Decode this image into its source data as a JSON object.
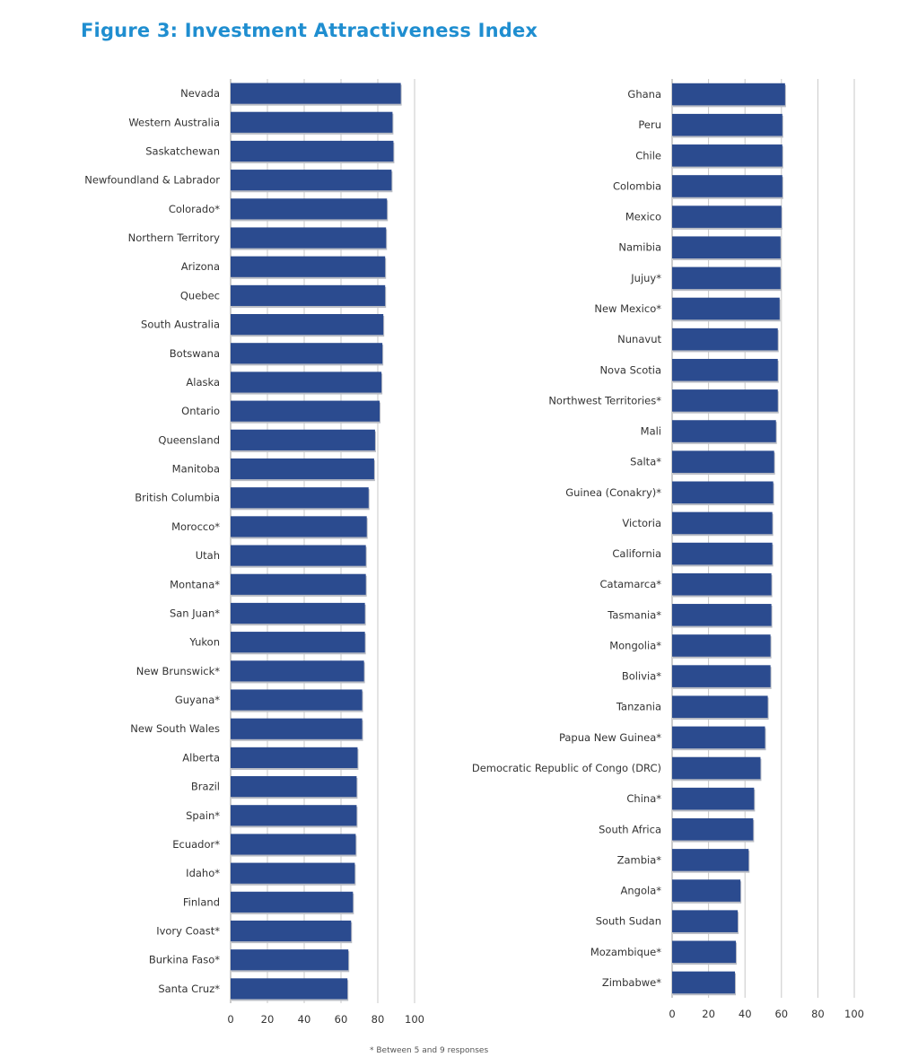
{
  "title": "Figure 3: Investment Attractiveness Index",
  "footnote": "* Between 5 and 9 responses",
  "bar_color": "#2b4b8f",
  "grid_color": "#c8c8c8",
  "chart_data": [
    {
      "type": "bar",
      "orientation": "horizontal",
      "xlim": [
        0,
        100
      ],
      "xticks": [
        0,
        20,
        40,
        60,
        80,
        100
      ],
      "grid": true,
      "categories": [
        "Nevada",
        "Western Australia",
        "Saskatchewan",
        "Newfoundland & Labrador",
        "Colorado*",
        "Northern Territory",
        "Arizona",
        "Quebec",
        "South Australia",
        "Botswana",
        "Alaska",
        "Ontario",
        "Queensland",
        "Manitoba",
        "British Columbia",
        "Morocco*",
        "Utah",
        "Montana*",
        "San Juan*",
        "Yukon",
        "New Brunswick*",
        "Guyana*",
        "New South Wales",
        "Alberta",
        "Brazil",
        "Spain*",
        "Ecuador*",
        "Idaho*",
        "Finland",
        "Ivory Coast*",
        "Burkina Faso*",
        "Santa Cruz*"
      ],
      "values": [
        92.5,
        88,
        88.5,
        87.5,
        85,
        84.5,
        84,
        84,
        83,
        82.5,
        82,
        81,
        78.5,
        78,
        75,
        74,
        73.5,
        73.5,
        73,
        73,
        72.5,
        71.5,
        71.5,
        69,
        68.5,
        68.5,
        68,
        67.5,
        66.5,
        65.5,
        64,
        63.5
      ]
    },
    {
      "type": "bar",
      "orientation": "horizontal",
      "xlim": [
        0,
        100
      ],
      "xticks": [
        0,
        20,
        40,
        60,
        80,
        100
      ],
      "grid": true,
      "categories": [
        "Ghana",
        "Peru",
        "Chile",
        "Colombia",
        "Mexico",
        "Namibia",
        "Jujuy*",
        "New Mexico*",
        "Nunavut",
        "Nova Scotia",
        "Northwest Territories*",
        "Mali",
        "Salta*",
        "Guinea (Conakry)*",
        "Victoria",
        "California",
        "Catamarca*",
        "Tasmania*",
        "Mongolia*",
        "Bolivia*",
        "Tanzania",
        "Papua New Guinea*",
        "Democratic Republic of Congo (DRC)",
        "China*",
        "South Africa",
        "Zambia*",
        "Angola*",
        "South Sudan",
        "Mozambique*",
        "Zimbabwe*"
      ],
      "values": [
        62,
        60.5,
        60.5,
        60.5,
        60,
        59.5,
        59.5,
        59,
        58,
        58,
        58,
        57,
        56,
        55.5,
        55,
        55,
        54.5,
        54.5,
        54,
        54,
        52.5,
        51,
        48.5,
        45,
        44.5,
        42,
        37.5,
        36,
        35,
        34.5
      ]
    }
  ]
}
